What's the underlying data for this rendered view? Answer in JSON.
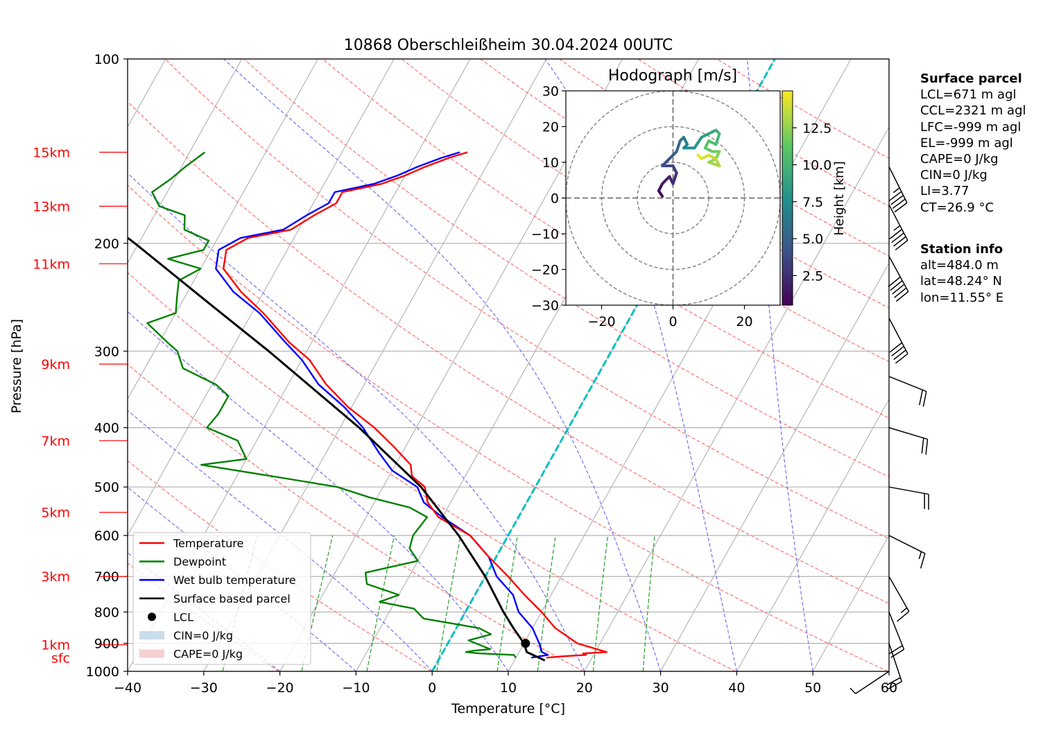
{
  "chart_data": {
    "type": "skew-t log-p sounding",
    "title": "10868 Oberschleißheim 30.04.2024 00UTC",
    "xlabel": "Temperature [°C]",
    "ylabel": "Pressure [hPa]",
    "xlim": [
      -40,
      60
    ],
    "ylim_hpa": [
      1000,
      100
    ],
    "y_scale": "log",
    "skew_deg_per_decade_log_p": 45,
    "x_ticks": [
      "−40",
      "−30",
      "−20",
      "−10",
      "0",
      "10",
      "20",
      "30",
      "40",
      "50",
      "60"
    ],
    "y_ticks": [
      "100",
      "200",
      "300",
      "400",
      "500",
      "600",
      "700",
      "800",
      "900",
      "1000"
    ],
    "height_labels": [
      {
        "label": "15km",
        "p": 142
      },
      {
        "label": "13km",
        "p": 174
      },
      {
        "label": "11km",
        "p": 216
      },
      {
        "label": "9km",
        "p": 315
      },
      {
        "label": "7km",
        "p": 420
      },
      {
        "label": "5km",
        "p": 550
      },
      {
        "label": "3km",
        "p": 700
      },
      {
        "label": "1km",
        "p": 905
      },
      {
        "label": "sfc",
        "p": 950
      }
    ],
    "legend": {
      "position": "lower-left",
      "entries": [
        {
          "label": "Temperature",
          "color": "#ff0000",
          "kind": "line"
        },
        {
          "label": "Dewpoint",
          "color": "#008000",
          "kind": "line"
        },
        {
          "label": "Wet bulb temperature",
          "color": "#0000ff",
          "kind": "line"
        },
        {
          "label": "Surface based parcel",
          "color": "#000000",
          "kind": "line"
        },
        {
          "label": "LCL",
          "color": "#000000",
          "kind": "marker"
        },
        {
          "label": "CIN=0 J/kg",
          "color": "#bcd4e6",
          "kind": "patch"
        },
        {
          "label": "CAPE=0 J/kg",
          "color": "#f4c6c6",
          "kind": "patch"
        }
      ]
    },
    "temperature": [
      [
        950,
        14.0
      ],
      [
        945,
        16.0
      ],
      [
        940,
        19.0
      ],
      [
        935,
        18.5
      ],
      [
        930,
        21.5
      ],
      [
        920,
        20.0
      ],
      [
        900,
        17.0
      ],
      [
        850,
        13.0
      ],
      [
        800,
        10.0
      ],
      [
        750,
        6.5
      ],
      [
        700,
        3.0
      ],
      [
        650,
        -1.0
      ],
      [
        600,
        -5.0
      ],
      [
        560,
        -10.5
      ],
      [
        530,
        -13.0
      ],
      [
        500,
        -14.5
      ],
      [
        480,
        -17.0
      ],
      [
        460,
        -18.0
      ],
      [
        430,
        -21.5
      ],
      [
        400,
        -25.5
      ],
      [
        370,
        -30.5
      ],
      [
        340,
        -35.0
      ],
      [
        310,
        -39.0
      ],
      [
        290,
        -43.0
      ],
      [
        260,
        -48.5
      ],
      [
        240,
        -53.0
      ],
      [
        220,
        -57.0
      ],
      [
        205,
        -58.0
      ],
      [
        196,
        -56.0
      ],
      [
        190,
        -51.0
      ],
      [
        180,
        -49.0
      ],
      [
        172,
        -47.0
      ],
      [
        165,
        -47.0
      ],
      [
        160,
        -42.5
      ],
      [
        155,
        -40.0
      ],
      [
        150,
        -38.0
      ],
      [
        145,
        -35.5
      ],
      [
        142,
        -33.5
      ]
    ],
    "dewpoint": [
      [
        950,
        10.0
      ],
      [
        940,
        9.5
      ],
      [
        935,
        5.0
      ],
      [
        930,
        3.0
      ],
      [
        925,
        4.0
      ],
      [
        920,
        6.0
      ],
      [
        890,
        2.5
      ],
      [
        870,
        5.0
      ],
      [
        850,
        3.0
      ],
      [
        820,
        -5.0
      ],
      [
        790,
        -7.0
      ],
      [
        770,
        -12.0
      ],
      [
        750,
        -10.0
      ],
      [
        720,
        -15.0
      ],
      [
        690,
        -16.0
      ],
      [
        660,
        -10.0
      ],
      [
        630,
        -12.0
      ],
      [
        600,
        -12.5
      ],
      [
        560,
        -12.0
      ],
      [
        540,
        -15.0
      ],
      [
        520,
        -21.0
      ],
      [
        500,
        -26.0
      ],
      [
        485,
        -33.0
      ],
      [
        460,
        -45.5
      ],
      [
        450,
        -40.0
      ],
      [
        420,
        -42.5
      ],
      [
        400,
        -47.5
      ],
      [
        380,
        -47.0
      ],
      [
        355,
        -47.0
      ],
      [
        340,
        -49.5
      ],
      [
        320,
        -55.0
      ],
      [
        300,
        -57.0
      ],
      [
        290,
        -59.0
      ],
      [
        270,
        -63.0
      ],
      [
        260,
        -60.0
      ],
      [
        245,
        -61.0
      ],
      [
        230,
        -62.0
      ],
      [
        220,
        -60.0
      ],
      [
        212,
        -65.0
      ],
      [
        205,
        -61.0
      ],
      [
        198,
        -61.0
      ],
      [
        190,
        -65.0
      ],
      [
        180,
        -66.0
      ],
      [
        174,
        -70.0
      ],
      [
        165,
        -72.0
      ],
      [
        157,
        -70.5
      ],
      [
        150,
        -69.5
      ],
      [
        142,
        -68.0
      ]
    ],
    "wet_bulb": [
      [
        950,
        12.0
      ],
      [
        940,
        14.0
      ],
      [
        930,
        13.0
      ],
      [
        900,
        12.0
      ],
      [
        850,
        10.0
      ],
      [
        800,
        7.0
      ],
      [
        750,
        5.0
      ],
      [
        700,
        1.5
      ],
      [
        650,
        -1.0
      ],
      [
        600,
        -5.0
      ],
      [
        560,
        -10.0
      ],
      [
        530,
        -13.5
      ],
      [
        500,
        -15.5
      ],
      [
        470,
        -20.0
      ],
      [
        440,
        -23.0
      ],
      [
        400,
        -27.0
      ],
      [
        370,
        -31.0
      ],
      [
        340,
        -36.0
      ],
      [
        310,
        -40.0
      ],
      [
        290,
        -43.5
      ],
      [
        260,
        -49.0
      ],
      [
        240,
        -54.0
      ],
      [
        220,
        -58.0
      ],
      [
        205,
        -59.0
      ],
      [
        196,
        -57.0
      ],
      [
        190,
        -52.0
      ],
      [
        180,
        -50.0
      ],
      [
        172,
        -48.0
      ],
      [
        165,
        -48.0
      ],
      [
        160,
        -43.5
      ],
      [
        155,
        -41.0
      ],
      [
        150,
        -39.0
      ],
      [
        145,
        -36.5
      ],
      [
        142,
        -34.5
      ]
    ],
    "parcel": [
      [
        960,
        14.0
      ],
      [
        930,
        11.0
      ],
      [
        900,
        10.0
      ],
      [
        850,
        7.5
      ],
      [
        800,
        5.0
      ],
      [
        700,
        0.0
      ],
      [
        600,
        -6.5
      ],
      [
        500,
        -15.0
      ],
      [
        400,
        -27.5
      ],
      [
        300,
        -45.0
      ],
      [
        250,
        -56.5
      ],
      [
        200,
        -70.5
      ],
      [
        150,
        -89.5
      ],
      [
        136,
        -96.0
      ]
    ],
    "lcl": {
      "p": 900,
      "t": 10.2
    },
    "dry_adiabat_thetas_k": [
      213,
      233,
      253,
      273,
      293,
      313,
      333,
      353,
      373,
      393,
      413,
      433,
      453,
      473,
      493,
      513
    ],
    "moist_adiabat_start_temps_c": [
      -20,
      -10,
      0,
      10,
      20,
      30,
      40,
      50
    ],
    "mixing_ratios_gkg": [
      0.4,
      1,
      2,
      4,
      7,
      10,
      16,
      24
    ],
    "freezing_level_isotherm_c": 0,
    "wind_barbs": [
      {
        "p": 150,
        "u": -10,
        "v": 20
      },
      {
        "p": 173,
        "u": -11,
        "v": 21
      },
      {
        "p": 210,
        "u": -12,
        "v": 22
      },
      {
        "p": 265,
        "u": -10,
        "v": 19
      },
      {
        "p": 330,
        "u": -10,
        "v": 4
      },
      {
        "p": 400,
        "u": -10,
        "v": 3
      },
      {
        "p": 500,
        "u": -11,
        "v": 2
      },
      {
        "p": 600,
        "u": -8,
        "v": 4
      },
      {
        "p": 700,
        "u": -4,
        "v": 7
      },
      {
        "p": 800,
        "u": -4,
        "v": 10
      },
      {
        "p": 900,
        "u": -3,
        "v": 9
      },
      {
        "p": 1000,
        "u": 3,
        "v": 2
      }
    ],
    "hodograph": {
      "title": "Hodograph [m/s]",
      "xlim": [
        -30,
        30
      ],
      "ylim": [
        -30,
        30
      ],
      "ticks": [
        "−20",
        "0",
        "20"
      ],
      "yticks": [
        "30",
        "20",
        "10",
        "0",
        "−10",
        "−20",
        "−30"
      ],
      "rings_ms": [
        10,
        20,
        30
      ],
      "colorbar_label": "Height [km]",
      "colorbar_ticks": [
        "2.5",
        "5.0",
        "7.5",
        "10.0",
        "12.5"
      ],
      "height_range_km": [
        0.5,
        15
      ],
      "points": [
        [
          -3,
          0.5,
          0.5
        ],
        [
          -4,
          2,
          1.0
        ],
        [
          -3,
          4,
          1.5
        ],
        [
          -1,
          6,
          2.0
        ],
        [
          0,
          4,
          2.3
        ],
        [
          1,
          7,
          2.8
        ],
        [
          0,
          9,
          3.3
        ],
        [
          -3,
          9,
          3.8
        ],
        [
          -1,
          11,
          4.3
        ],
        [
          1,
          13,
          5.0
        ],
        [
          2,
          16,
          5.6
        ],
        [
          3,
          17,
          6.2
        ],
        [
          4,
          15,
          6.8
        ],
        [
          3,
          14,
          7.2
        ],
        [
          6,
          14,
          7.8
        ],
        [
          8,
          17,
          8.3
        ],
        [
          10,
          18,
          8.8
        ],
        [
          12,
          19,
          9.3
        ],
        [
          13,
          18,
          9.8
        ],
        [
          12,
          15,
          10.3
        ],
        [
          10,
          16,
          10.7
        ],
        [
          9,
          14,
          11.1
        ],
        [
          11,
          13,
          11.5
        ],
        [
          13,
          13,
          11.9
        ],
        [
          12,
          11,
          12.3
        ],
        [
          10,
          10,
          12.7
        ],
        [
          13,
          9,
          13.1
        ],
        [
          12,
          11,
          13.5
        ],
        [
          10,
          12,
          13.9
        ],
        [
          8,
          11,
          14.3
        ],
        [
          7,
          12,
          14.7
        ]
      ]
    }
  },
  "side_panel": {
    "surface_heading": "Surface parcel",
    "surface_lines": [
      "LCL=671 m agl",
      "CCL=2321 m agl",
      "LFC=-999 m agl",
      "EL=-999 m agl",
      "CAPE=0 J/kg",
      "CIN=0 J/kg",
      "LI=3.77",
      "CT=26.9 °C"
    ],
    "station_heading": "Station info",
    "station_lines": [
      "alt=484.0 m",
      "lat=48.24° N",
      "lon=11.55° E"
    ]
  },
  "colors": {
    "temperature": "#ff0000",
    "dewpoint": "#008000",
    "wet_bulb": "#0000ff",
    "parcel": "#000000",
    "isobar": "#b0b0b0",
    "dry_adiabat": "#ff7070",
    "moist_adiabat": "#7070f0",
    "mixing_ratio": "#22a022",
    "freezing_isotherm": "#00c0c0",
    "height_label": "#ff0000"
  }
}
